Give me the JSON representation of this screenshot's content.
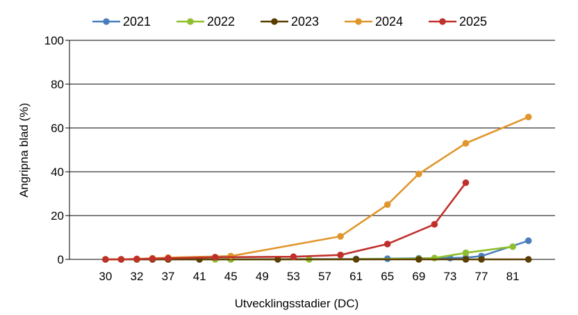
{
  "chart_data": {
    "type": "line",
    "xlabel": "Utvecklingsstadier (DC)",
    "ylabel": "Angripna blad (%)",
    "ylim": [
      0,
      100
    ],
    "yticks": [
      0,
      20,
      40,
      60,
      80,
      100
    ],
    "xlim": [
      30,
      84
    ],
    "xticks": [
      30,
      32,
      37,
      41,
      45,
      49,
      53,
      57,
      61,
      65,
      69,
      73,
      77,
      81
    ],
    "xtick_positions": [
      30,
      32,
      34,
      36,
      38,
      40,
      42,
      44,
      46,
      48,
      50,
      52,
      54,
      56
    ],
    "grid": "horizontal",
    "legend": "top",
    "series": [
      {
        "name": "2021",
        "color": "#4a7ebb",
        "points": [
          [
            30,
            0
          ],
          [
            31,
            0
          ],
          [
            32,
            0
          ],
          [
            33,
            0
          ],
          [
            34,
            0
          ],
          [
            36,
            0
          ],
          [
            38,
            0
          ],
          [
            46,
            0.2
          ],
          [
            48,
            0.3
          ],
          [
            50,
            0.5
          ],
          [
            52,
            0.6
          ],
          [
            53,
            0.8
          ],
          [
            54,
            1.5
          ],
          [
            57,
            8.5
          ]
        ]
      },
      {
        "name": "2022",
        "color": "#8fbf2e",
        "points": [
          [
            30,
            0
          ],
          [
            31,
            0
          ],
          [
            32,
            0
          ],
          [
            33,
            0
          ],
          [
            34,
            0
          ],
          [
            37,
            0
          ],
          [
            38,
            0
          ],
          [
            43,
            0
          ],
          [
            50,
            0.3
          ],
          [
            51,
            0.6
          ],
          [
            53,
            3
          ],
          [
            56,
            5.8
          ]
        ]
      },
      {
        "name": "2023",
        "color": "#5a3e00",
        "points": [
          [
            30,
            0
          ],
          [
            31,
            0
          ],
          [
            32,
            0
          ],
          [
            33,
            0
          ],
          [
            34,
            0
          ],
          [
            36,
            0
          ],
          [
            41,
            0
          ],
          [
            46,
            0
          ],
          [
            50,
            0
          ],
          [
            53,
            0
          ],
          [
            54,
            0
          ],
          [
            57,
            0
          ]
        ]
      },
      {
        "name": "2024",
        "color": "#e0962b",
        "points": [
          [
            30,
            0
          ],
          [
            31,
            0
          ],
          [
            32,
            0.2
          ],
          [
            33,
            0.5
          ],
          [
            34,
            0.8
          ],
          [
            38,
            1.5
          ],
          [
            45,
            10.5
          ],
          [
            48,
            25
          ],
          [
            50,
            39
          ],
          [
            53,
            53
          ],
          [
            57,
            65
          ]
        ]
      },
      {
        "name": "2025",
        "color": "#c0302a",
        "points": [
          [
            30,
            0
          ],
          [
            31,
            0
          ],
          [
            32,
            0.2
          ],
          [
            33,
            0.3
          ],
          [
            34,
            0.5
          ],
          [
            37,
            1
          ],
          [
            42,
            1.2
          ],
          [
            45,
            2
          ],
          [
            48,
            7
          ],
          [
            51,
            16
          ],
          [
            53,
            35
          ]
        ]
      }
    ]
  }
}
